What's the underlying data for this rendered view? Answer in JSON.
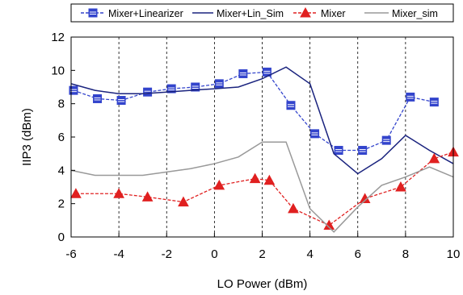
{
  "chart_data": {
    "type": "line",
    "title": "",
    "xlabel": "LO Power (dBm)",
    "ylabel": "IIP3 (dBm)",
    "xlim": [
      -6,
      10
    ],
    "ylim": [
      0,
      12
    ],
    "xticks": [
      "-6",
      "-4",
      "-2",
      "0",
      "2",
      "4",
      "6",
      "8",
      "10"
    ],
    "yticks": [
      "0",
      "2",
      "4",
      "6",
      "8",
      "10",
      "12"
    ],
    "grid": "vertical dashed",
    "legend_position": "top",
    "series": [
      {
        "name": "Mixer+Linearizer",
        "color": "#3344cc",
        "marker": "square",
        "dash": "dashed",
        "x": [
          -5.9,
          -4.9,
          -3.9,
          -2.8,
          -1.8,
          -0.8,
          0.2,
          1.2,
          2.2,
          3.2,
          4.2,
          5.2,
          6.2,
          7.2,
          8.2,
          9.2
        ],
        "y": [
          8.8,
          8.3,
          8.2,
          8.7,
          8.9,
          9.0,
          9.2,
          9.8,
          9.9,
          7.9,
          6.2,
          5.2,
          5.2,
          5.8,
          8.4,
          8.1
        ]
      },
      {
        "name": "Mixer+Lin_Sim",
        "color": "#1a237e",
        "marker": "none",
        "dash": "solid",
        "x": [
          -6,
          -5,
          -4,
          -3,
          -2,
          -1,
          0,
          1,
          2,
          3,
          4,
          5,
          6,
          7,
          8,
          9,
          10
        ],
        "y": [
          9.2,
          8.8,
          8.6,
          8.6,
          8.7,
          8.8,
          8.9,
          9.0,
          9.5,
          10.2,
          9.2,
          5.0,
          3.8,
          4.7,
          6.1,
          5.2,
          4.4
        ]
      },
      {
        "name": "Mixer",
        "color": "#e02020",
        "marker": "triangle",
        "dash": "dashed",
        "x": [
          -5.8,
          -4,
          -2.8,
          -1.3,
          0.2,
          1.7,
          2.3,
          3.3,
          4.8,
          6.3,
          7.8,
          9.2,
          10
        ],
        "y": [
          2.6,
          2.6,
          2.4,
          2.1,
          3.1,
          3.5,
          3.4,
          1.7,
          0.7,
          2.3,
          3.0,
          4.7,
          5.1
        ]
      },
      {
        "name": "Mixer_sim",
        "color": "#999999",
        "marker": "none",
        "dash": "solid",
        "x": [
          -6,
          -5,
          -4,
          -3,
          -2,
          -1,
          0,
          1,
          2,
          3,
          4,
          5,
          6,
          7,
          8,
          9,
          10
        ],
        "y": [
          4.0,
          3.7,
          3.7,
          3.7,
          3.9,
          4.1,
          4.4,
          4.8,
          5.7,
          5.7,
          1.7,
          0.3,
          1.8,
          3.1,
          3.6,
          4.2,
          3.6
        ]
      }
    ]
  }
}
